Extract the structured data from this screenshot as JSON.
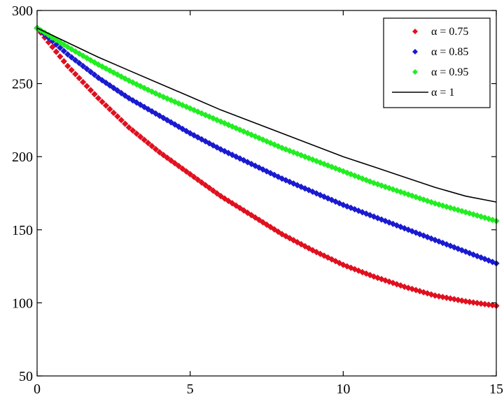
{
  "chart_data": {
    "type": "line",
    "title": "",
    "xlabel": "",
    "ylabel": "",
    "xlim": [
      0,
      15
    ],
    "ylim": [
      50,
      300
    ],
    "grid": false,
    "legend_position": "top-right",
    "x_ticks": [
      "0",
      "5",
      "10",
      "15"
    ],
    "y_ticks": [
      "50",
      "100",
      "150",
      "200",
      "250",
      "300"
    ],
    "x_tick_values": [
      0,
      5,
      10,
      15
    ],
    "y_tick_values": [
      50,
      100,
      150,
      200,
      250,
      300
    ],
    "x": [
      0,
      1,
      2,
      3,
      4,
      5,
      6,
      7,
      8,
      9,
      10,
      11,
      12,
      13,
      14,
      15
    ],
    "series": [
      {
        "name": "α = 0.75",
        "color": "#e0101e",
        "marker": "diamond",
        "values": [
          288,
          262,
          240,
          220,
          203,
          188,
          173,
          160,
          147,
          136,
          126,
          118,
          111,
          105,
          101,
          98
        ]
      },
      {
        "name": "α = 0.85",
        "color": "#1a1ad0",
        "marker": "diamond",
        "values": [
          288,
          270,
          254,
          240,
          228,
          216,
          205,
          195,
          185,
          176,
          167,
          159,
          151,
          143,
          135,
          127
        ]
      },
      {
        "name": "α = 0.95",
        "color": "#22ee22",
        "marker": "diamond",
        "values": [
          288,
          275,
          263,
          252,
          242,
          233,
          224,
          215,
          206,
          198,
          190,
          182,
          175,
          168,
          162,
          156
        ]
      },
      {
        "name": "α = 1",
        "color": "#000000",
        "marker": "none",
        "values": [
          288,
          278,
          268,
          259,
          250,
          241,
          232,
          224,
          216,
          208,
          200,
          193,
          186,
          179,
          173,
          169
        ]
      }
    ]
  }
}
